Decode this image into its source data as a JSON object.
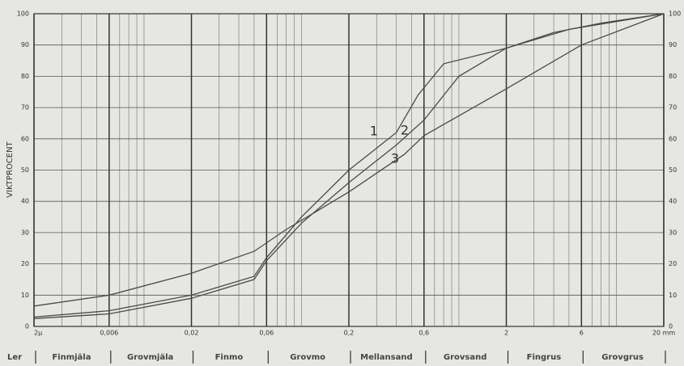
{
  "chart_data": {
    "type": "line",
    "y_label": "VIKTPROCENT",
    "xlog": true,
    "xlim": [
      0.002,
      20
    ],
    "xticks": [
      {
        "value": 0.002,
        "label": "2µ"
      },
      {
        "value": 0.006,
        "label": "0,006"
      },
      {
        "value": 0.02,
        "label": "0,02"
      },
      {
        "value": 0.06,
        "label": "0,06"
      },
      {
        "value": 0.2,
        "label": "0,2"
      },
      {
        "value": 0.6,
        "label": "0,6"
      },
      2,
      6,
      {
        "value": 20,
        "label": "20 mm"
      }
    ],
    "ylim": [
      0,
      100
    ],
    "yticks": [
      0,
      10,
      20,
      30,
      40,
      50,
      60,
      70,
      80,
      90,
      100
    ],
    "grid": true,
    "soil_classes": [
      "Ler",
      "Finmjäla",
      "Grovmjäla",
      "Finmo",
      "Grovmo",
      "Mellansand",
      "Grovsand",
      "Fingrus",
      "Grovgrus"
    ],
    "series": [
      {
        "name": "1",
        "color": "#4a4a4a",
        "x": [
          0.002,
          0.006,
          0.02,
          0.05,
          0.06,
          0.1,
          0.2,
          0.4,
          0.55,
          0.8,
          2,
          4,
          8,
          20
        ],
        "values": [
          3,
          5,
          10,
          16,
          22,
          35,
          50,
          62,
          74,
          84,
          89,
          94,
          97,
          100
        ]
      },
      {
        "name": "2",
        "color": "#4a4a4a",
        "x": [
          0.002,
          0.006,
          0.02,
          0.05,
          0.06,
          0.1,
          0.2,
          0.4,
          0.6,
          1,
          2,
          5,
          20
        ],
        "values": [
          2.5,
          4,
          9,
          15,
          21,
          33,
          46,
          58,
          66,
          80,
          89,
          95,
          100
        ]
      },
      {
        "name": "3",
        "color": "#4a4a4a",
        "x": [
          0.002,
          0.006,
          0.02,
          0.05,
          0.08,
          0.2,
          0.45,
          0.6,
          2,
          6,
          20
        ],
        "values": [
          6.5,
          10,
          17,
          24,
          31,
          43,
          55,
          61,
          76,
          90,
          100
        ]
      }
    ]
  }
}
